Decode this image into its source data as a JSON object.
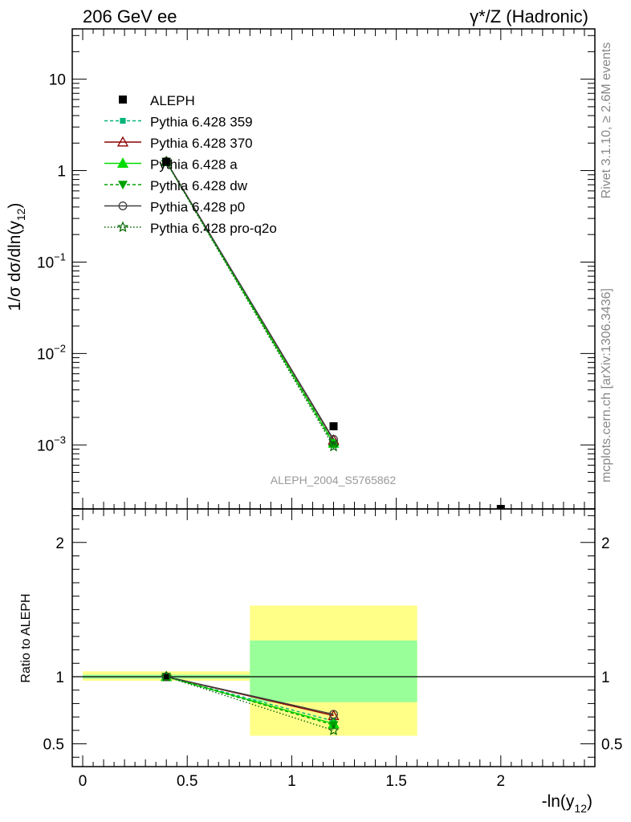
{
  "header": {
    "left": "206 GeV ee",
    "right": "γ*/Z (Hadronic)"
  },
  "side_labels": {
    "rivet": "Rivet 3.1.10, ≥ 2.6M events",
    "mcplots": "mcplots.cern.ch [arXiv:1306.3436]"
  },
  "chart_data": {
    "type": "line",
    "analysis_label": "ALEPH_2004_S5765862",
    "ylabel_main": "1/σ  dσ/dln(y12)",
    "ylabel_ratio": "Ratio to ALEPH",
    "xlabel": "-ln(y12)",
    "xlim": [
      -0.05,
      2.45
    ],
    "main_ylim_log10": [
      -3.7,
      1.55
    ],
    "main_yscale": "log",
    "ratio_ylim": [
      0.33,
      2.25
    ],
    "x_ticks": [
      "0",
      "0.5",
      "1",
      "1.5",
      "2"
    ],
    "main_y_ticks": [
      "10",
      "1",
      "10−1",
      "10−2",
      "10−3"
    ],
    "ratio_y_ticks": [
      "0.5",
      "1",
      "2"
    ],
    "legend_position": "top-left",
    "data": {
      "name": "ALEPH",
      "x": [
        0.4,
        1.2,
        2.0
      ],
      "y": [
        1.25,
        0.0016,
        0.00018
      ]
    },
    "ratio_bands": [
      {
        "x": [
          0.0,
          0.8
        ],
        "inner": [
          0.985,
          1.015
        ],
        "outer": [
          0.97,
          1.04
        ]
      },
      {
        "x": [
          0.8,
          1.6
        ],
        "inner": [
          0.81,
          1.27
        ],
        "outer": [
          0.56,
          1.53
        ]
      }
    ],
    "series": [
      {
        "name": "Pythia 6.428 359",
        "color": "#00b377",
        "dash": "4,3",
        "marker": "square-small",
        "x": [
          0.4,
          1.2
        ],
        "y": [
          1.25,
          0.00107
        ],
        "ratio": [
          1.0,
          0.67
        ]
      },
      {
        "name": "Pythia 6.428 370",
        "color": "#8b0000",
        "dash": "",
        "marker": "triangle-open",
        "x": [
          0.4,
          1.2
        ],
        "y": [
          1.26,
          0.00113
        ],
        "ratio": [
          1.0,
          0.71
        ]
      },
      {
        "name": "Pythia 6.428 a",
        "color": "#00dd00",
        "dash": "",
        "marker": "triangle-filled",
        "x": [
          0.4,
          1.2
        ],
        "y": [
          1.25,
          0.00104
        ],
        "ratio": [
          1.0,
          0.65
        ]
      },
      {
        "name": "Pythia 6.428 dw",
        "color": "#00a000",
        "dash": "4,3",
        "marker": "triangle-down",
        "x": [
          0.4,
          1.2
        ],
        "y": [
          1.25,
          0.00101
        ],
        "ratio": [
          1.0,
          0.64
        ]
      },
      {
        "name": "Pythia 6.428 p0",
        "color": "#404040",
        "dash": "",
        "marker": "circle-open",
        "x": [
          0.4,
          1.2
        ],
        "y": [
          1.26,
          0.00115
        ],
        "ratio": [
          1.0,
          0.72
        ]
      },
      {
        "name": "Pythia 6.428 pro-q2o",
        "color": "#006400",
        "dash": "1.5,2.5",
        "marker": "star",
        "x": [
          0.4,
          1.2
        ],
        "y": [
          1.24,
          0.00096
        ],
        "ratio": [
          1.0,
          0.6
        ]
      }
    ]
  }
}
